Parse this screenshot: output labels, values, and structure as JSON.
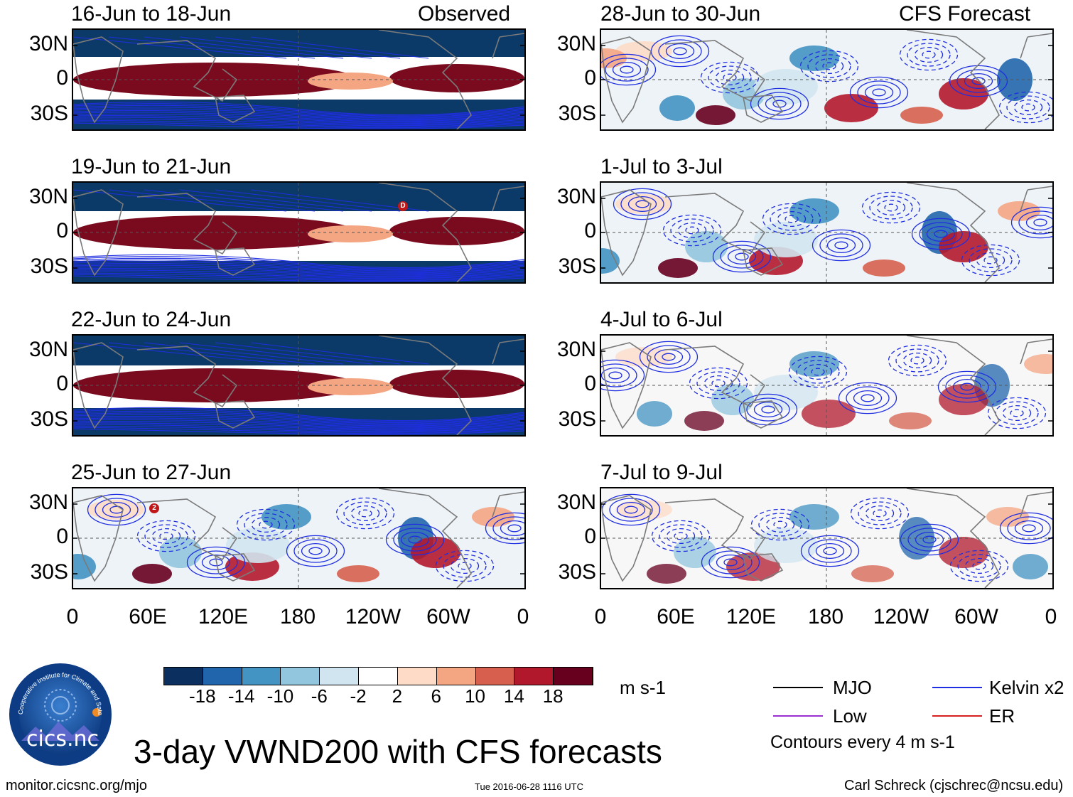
{
  "header": {
    "observed_label": "Observed",
    "forecast_label": "CFS Forecast"
  },
  "panels": {
    "left": [
      {
        "title": "16-Jun to 18-Jun",
        "style": "observed"
      },
      {
        "title": "19-Jun to 21-Jun",
        "style": "observed"
      },
      {
        "title": "22-Jun to 24-Jun",
        "style": "observed"
      },
      {
        "title": "25-Jun to 27-Jun",
        "style": "mixed"
      }
    ],
    "right": [
      {
        "title": "28-Jun to 30-Jun",
        "style": "forecast"
      },
      {
        "title": "1-Jul to 3-Jul",
        "style": "forecast"
      },
      {
        "title": "4-Jul to 6-Jul",
        "style": "forecast_light"
      },
      {
        "title": "7-Jul to 9-Jul",
        "style": "forecast_light"
      }
    ]
  },
  "axes": {
    "y_labels": [
      "30N",
      "0",
      "30S"
    ],
    "x_labels": [
      "0",
      "60E",
      "120E",
      "180",
      "120W",
      "60W",
      "0"
    ]
  },
  "markers": {
    "panel2": "D",
    "panel4": "2"
  },
  "colorbar": {
    "ticks": [
      "-18",
      "-14",
      "-10",
      "-6",
      "-2",
      "2",
      "6",
      "10",
      "14",
      "18"
    ],
    "colors": [
      "#0b2f5e",
      "#2166ac",
      "#4393c3",
      "#92c5de",
      "#d1e5f0",
      "#ffffff",
      "#fddbc7",
      "#f4a582",
      "#d6604d",
      "#b2182b",
      "#67001f"
    ],
    "units": "m s-1"
  },
  "legend": {
    "items": [
      {
        "label": "MJO",
        "color": "#000000"
      },
      {
        "label": "Kelvin x2",
        "color": "#1f2ee0"
      },
      {
        "label": "Low",
        "color": "#9b30d0"
      },
      {
        "label": "ER",
        "color": "#d62020"
      }
    ],
    "contours_note": "Contours every 4 m s-1"
  },
  "footer": {
    "main_title": "3-day VWND200 with CFS forecasts",
    "url": "monitor.cicsnc.org/mjo",
    "timestamp": "Tue 2016-06-28 1116 UTC",
    "credit": "Carl Schreck (cjschrec@ncsu.edu)"
  },
  "logo": {
    "text": "cics.nc",
    "ring_text": "Cooperative Institute for Climate and Satellites"
  }
}
